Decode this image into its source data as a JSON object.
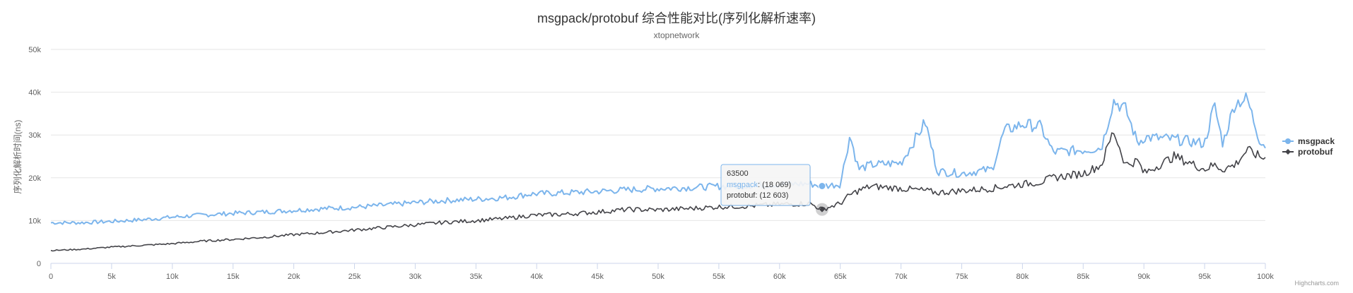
{
  "chart_data": {
    "type": "line",
    "title": "msgpack/protobuf 综合性能对比(序列化解析速率)",
    "subtitle": "xtopnetwork",
    "ylabel": "序列化解析时间(ns)",
    "xlabel": "",
    "xlim": [
      0,
      100000
    ],
    "ylim": [
      0,
      50000
    ],
    "x_ticks": [
      0,
      5000,
      10000,
      15000,
      20000,
      25000,
      30000,
      35000,
      40000,
      45000,
      50000,
      55000,
      60000,
      65000,
      70000,
      75000,
      80000,
      85000,
      90000,
      95000,
      100000
    ],
    "x_tick_labels": [
      "0",
      "5k",
      "10k",
      "15k",
      "20k",
      "25k",
      "30k",
      "35k",
      "40k",
      "45k",
      "50k",
      "55k",
      "60k",
      "65k",
      "70k",
      "75k",
      "80k",
      "85k",
      "90k",
      "95k",
      "100k"
    ],
    "y_ticks": [
      0,
      10000,
      20000,
      30000,
      40000,
      50000
    ],
    "y_tick_labels": [
      "0",
      "10k",
      "20k",
      "30k",
      "40k",
      "50k"
    ],
    "grid": true,
    "legend": "right",
    "x": [
      0,
      2500,
      5000,
      7500,
      10000,
      12500,
      15000,
      17500,
      20000,
      22500,
      25000,
      27500,
      30000,
      32500,
      35000,
      37500,
      39500,
      42500,
      45000,
      47500,
      50000,
      52500,
      55000,
      57500,
      60000,
      62500,
      63500,
      65000,
      65800,
      66500,
      67500,
      70000,
      72000,
      73000,
      75000,
      77500,
      78500,
      80000,
      81500,
      82500,
      85000,
      86500,
      87500,
      88500,
      89500,
      90000,
      92500,
      95000,
      95800,
      96500,
      97500,
      98500,
      99500,
      100000
    ],
    "series": [
      {
        "name": "msgpack",
        "color": "#7cb5ec",
        "values": [
          9500,
          9500,
          9800,
          10200,
          10800,
          11300,
          11700,
          12000,
          12400,
          12800,
          13100,
          13600,
          14200,
          14700,
          15000,
          15400,
          16200,
          16500,
          16800,
          17200,
          17500,
          17700,
          18000,
          18200,
          18500,
          18600,
          18069,
          18500,
          30000,
          22000,
          23000,
          23500,
          33000,
          21500,
          21000,
          22000,
          31000,
          32500,
          32000,
          26000,
          26500,
          27000,
          38000,
          36000,
          28000,
          29500,
          29000,
          28000,
          37000,
          28000,
          37500,
          38500,
          29000,
          27500
        ]
      },
      {
        "name": "protobuf",
        "color": "#434348",
        "values": [
          3000,
          3300,
          3800,
          4200,
          4600,
          5200,
          5600,
          6100,
          6700,
          7200,
          7800,
          8400,
          9000,
          9600,
          10000,
          10500,
          11200,
          11500,
          12000,
          12600,
          12500,
          12800,
          13200,
          13400,
          13800,
          14000,
          12603,
          14000,
          16000,
          17000,
          18000,
          17500,
          17000,
          16500,
          17000,
          17500,
          18000,
          18500,
          19000,
          20000,
          21000,
          23000,
          31000,
          23000,
          24000,
          21000,
          25000,
          22000,
          23000,
          22000,
          23000,
          26500,
          25000,
          24500
        ]
      }
    ],
    "tooltip": {
      "x": "63500",
      "lines": [
        "msgpack: (18 069)",
        "protobuf: (12 603)"
      ]
    },
    "credits": "Highcharts.com"
  }
}
